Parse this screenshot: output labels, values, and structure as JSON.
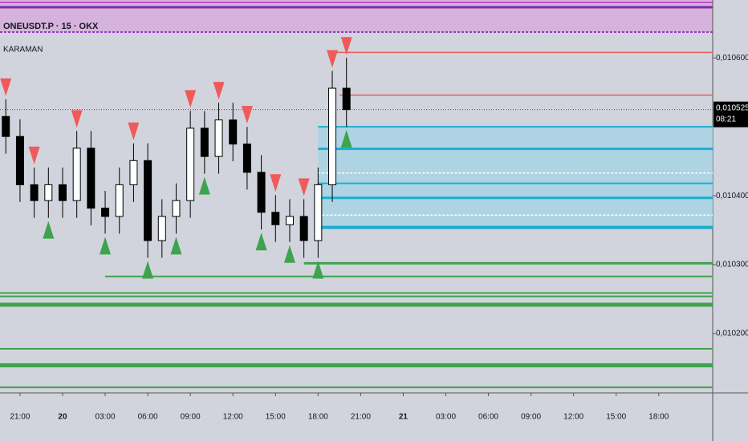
{
  "chart_data": {
    "type": "candlestick",
    "title": "ONEUSDT.P · 15 · OKX",
    "indicator": "KARAMAN",
    "x": [
      -4,
      -3,
      -2,
      -1,
      0,
      1,
      2,
      3,
      4,
      5,
      6,
      7,
      8,
      9,
      10,
      11,
      12,
      13,
      14,
      15,
      16,
      17,
      18,
      19,
      20
    ],
    "open": [
      0.010515,
      0.010486,
      0.010416,
      0.010393,
      0.010416,
      0.010393,
      0.010469,
      0.010382,
      0.01037,
      0.010416,
      0.010451,
      0.010335,
      0.01037,
      0.010393,
      0.010498,
      0.010457,
      0.01051,
      0.010475,
      0.010434,
      0.010376,
      0.010358,
      0.01037,
      0.010335,
      0.010416,
      0.010556
    ],
    "high": [
      0.01054,
      0.010511,
      0.010441,
      0.010441,
      0.010441,
      0.010494,
      0.010494,
      0.010407,
      0.010441,
      0.010476,
      0.010476,
      0.010395,
      0.010418,
      0.010523,
      0.010523,
      0.010535,
      0.010535,
      0.0105,
      0.010459,
      0.010401,
      0.010395,
      0.010395,
      0.010441,
      0.010581,
      0.0106
    ],
    "low": [
      0.010461,
      0.010391,
      0.010368,
      0.010368,
      0.010368,
      0.010368,
      0.010357,
      0.010345,
      0.010345,
      0.010391,
      0.01031,
      0.01031,
      0.010345,
      0.010368,
      0.010432,
      0.010432,
      0.01045,
      0.010409,
      0.010351,
      0.010333,
      0.010333,
      0.01031,
      0.01031,
      0.010391,
      0.0105
    ],
    "close": [
      0.010486,
      0.010416,
      0.010393,
      0.010416,
      0.010393,
      0.010469,
      0.010382,
      0.01037,
      0.010416,
      0.010451,
      0.010335,
      0.01037,
      0.010393,
      0.010498,
      0.010457,
      0.01051,
      0.010475,
      0.010434,
      0.010376,
      0.010358,
      0.01037,
      0.010335,
      0.010416,
      0.010556,
      0.010525
    ],
    "bull_color": "#ffffff",
    "bear_color": "#000000",
    "pivot_highs": [
      0,
      2,
      5,
      9,
      13,
      15,
      17,
      19,
      21,
      23,
      24
    ],
    "pivot_lows": [
      3,
      7,
      10,
      12,
      14,
      18,
      20,
      22,
      24
    ],
    "pivot_high_color": "#f05a5a",
    "pivot_low_color": "#3fa34d",
    "zone": {
      "from": 18,
      "top": 0.0105,
      "bottom": 0.010354,
      "color": "#a8d4e4"
    },
    "levels": [
      {
        "value": 0.010608,
        "color": "#e85a5a",
        "width": 1.5,
        "from": 19
      },
      {
        "value": 0.010546,
        "color": "#e85a5a",
        "width": 1.5,
        "from": 19.5
      },
      {
        "value": 0.0105,
        "color": "#1aaed0",
        "width": 2,
        "from": 18
      },
      {
        "value": 0.010468,
        "color": "#1aaed0",
        "width": 3,
        "from": 18
      },
      {
        "value": 0.010433,
        "color": "#ffffff",
        "width": 1.5,
        "from": 18
      },
      {
        "value": 0.010418,
        "color": "#1aaed0",
        "width": 2,
        "from": 18
      },
      {
        "value": 0.010397,
        "color": "#1aaed0",
        "width": 3,
        "from": 18
      },
      {
        "value": 0.010372,
        "color": "#ffffff",
        "width": 1.5,
        "from": 18
      },
      {
        "value": 0.010354,
        "color": "#1aaed0",
        "width": 4,
        "from": 18
      },
      {
        "value": 0.010302,
        "color": "#3fa34d",
        "width": 3,
        "from": 17
      },
      {
        "value": 0.010283,
        "color": "#3fa34d",
        "width": 2,
        "from": 3
      },
      {
        "value": 0.010259,
        "color": "#3fa34d",
        "width": 2,
        "from": -4.41
      },
      {
        "value": 0.010254,
        "color": "#3fa34d",
        "width": 2,
        "from": -4.41
      },
      {
        "value": 0.010242,
        "color": "#3fa34d",
        "width": 5,
        "from": -4.41
      },
      {
        "value": 0.010178,
        "color": "#3fa34d",
        "width": 2,
        "from": -4.41
      },
      {
        "value": 0.010154,
        "color": "#3fa34d",
        "width": 5,
        "from": -4.41
      },
      {
        "value": 0.010122,
        "color": "#3fa34d",
        "width": 2,
        "from": -4.41
      }
    ],
    "last_price": {
      "value": 0.010525,
      "label": "0,010525"
    },
    "countdown": "08:21",
    "xlim": [
      -4.41,
      45.8
    ],
    "ylim": [
      0.010114,
      0.010684
    ],
    "xticks": [
      {
        "value": -3,
        "label": "21:00"
      },
      {
        "value": 0,
        "label": "20"
      },
      {
        "value": 3,
        "label": "03:00"
      },
      {
        "value": 6,
        "label": "06:00"
      },
      {
        "value": 9,
        "label": "09:00"
      },
      {
        "value": 12,
        "label": "12:00"
      },
      {
        "value": 15,
        "label": "15:00"
      },
      {
        "value": 18,
        "label": "18:00"
      },
      {
        "value": 21,
        "label": "21:00"
      },
      {
        "value": 24,
        "label": "21"
      },
      {
        "value": 27,
        "label": "03:00"
      },
      {
        "value": 30,
        "label": "06:00"
      },
      {
        "value": 33,
        "label": "09:00"
      },
      {
        "value": 36,
        "label": "12:00"
      },
      {
        "value": 39,
        "label": "15:00"
      },
      {
        "value": 42,
        "label": "18:00"
      }
    ],
    "bold_xticks": [
      1,
      9
    ],
    "yticks": [
      {
        "value": 0.0106,
        "label": "0,010600"
      },
      {
        "value": 0.0104,
        "label": "0,010400"
      },
      {
        "value": 0.0103,
        "label": "0,010300"
      },
      {
        "value": 0.0102,
        "label": "0,010200"
      }
    ]
  }
}
